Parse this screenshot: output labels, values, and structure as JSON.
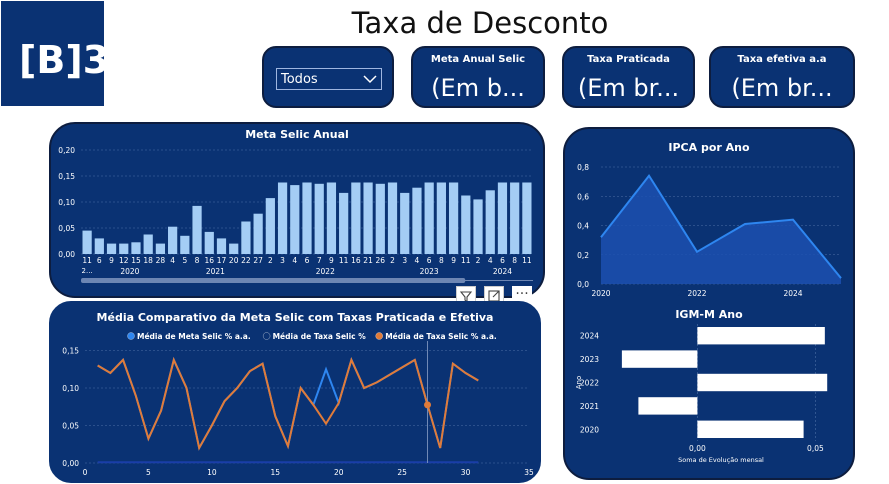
{
  "header": {
    "title": "Taxa de Desconto",
    "logo_text": "[B]3"
  },
  "filter": {
    "selected": "Todos"
  },
  "kpis": [
    {
      "title": "Meta Anual Selic",
      "value": "(Em b..."
    },
    {
      "title": "Taxa Praticada",
      "value": "(Em br..."
    },
    {
      "title": "Taxa efetiva a.a",
      "value": "(Em br..."
    }
  ],
  "toolbar": {
    "filter_icon": "filter-icon",
    "focus_icon": "focus-mode-icon",
    "more_icon": "more-options-icon",
    "more_label": "···"
  },
  "colors": {
    "panel": "#0a3273",
    "bar": "#a4cdf5",
    "line_blue": "#2e86f0",
    "line_orange": "#e07b39",
    "ipca": "#1f62d6"
  },
  "chart_data": [
    {
      "type": "bar",
      "title": "Meta Selic Anual",
      "categories": [
        "11",
        "6",
        "9",
        "12",
        "15",
        "18",
        "28",
        "4",
        "5",
        "8",
        "16",
        "17",
        "20",
        "22",
        "27",
        "2",
        "3",
        "4",
        "6",
        "7",
        "9",
        "11",
        "16",
        "21",
        "26",
        "2",
        "3",
        "4",
        "6",
        "8",
        "9",
        "11",
        "2",
        "4",
        "6",
        "8",
        "11"
      ],
      "category_sub": [
        "2..."
      ],
      "year_labels": [
        {
          "label": "2020",
          "from": 1,
          "to": 6
        },
        {
          "label": "2021",
          "from": 7,
          "to": 14
        },
        {
          "label": "2022",
          "from": 15,
          "to": 24
        },
        {
          "label": "2023",
          "from": 25,
          "to": 31
        },
        {
          "label": "2024",
          "from": 32,
          "to": 36
        }
      ],
      "values": [
        0.045,
        0.03,
        0.02,
        0.02,
        0.0225,
        0.0375,
        0.02,
        0.0525,
        0.035,
        0.0925,
        0.0425,
        0.03,
        0.02,
        0.0625,
        0.0775,
        0.1075,
        0.1375,
        0.1325,
        0.1375,
        0.135,
        0.1375,
        0.1175,
        0.1375,
        0.1375,
        0.135,
        0.1375,
        0.1175,
        0.1275,
        0.1375,
        0.1375,
        0.1375,
        0.1125,
        0.105,
        0.1225,
        0.1375,
        0.1375,
        0.1375
      ],
      "yticks": [
        "0,00",
        "0,05",
        "0,10",
        "0,15",
        "0,20"
      ],
      "ylim": [
        0,
        0.2
      ]
    },
    {
      "type": "line",
      "title": "Média Comparativo da Meta Selic com Taxas Praticada e Efetiva",
      "legend": [
        {
          "name": "Média de Meta Selic % a.a.",
          "color": "#2e86f0"
        },
        {
          "name": "Média de Taxa Selic %",
          "color": "#0a3273"
        },
        {
          "name": "Média de Taxa Selic % a.a.",
          "color": "#e07b39"
        }
      ],
      "xlim": [
        0,
        35
      ],
      "ylim": [
        0,
        0.16
      ],
      "xticks": [
        "0",
        "5",
        "10",
        "15",
        "20",
        "25",
        "30",
        "35"
      ],
      "yticks": [
        "0,00",
        "0,05",
        "0,10",
        "0,15"
      ],
      "series": [
        {
          "name": "Média de Meta Selic % a.a.",
          "x": [
            1,
            2,
            3,
            4,
            5,
            6,
            7,
            8,
            9,
            10,
            11,
            12,
            13,
            14,
            15,
            16,
            17,
            18,
            19,
            20,
            21,
            22,
            23,
            24,
            25,
            26,
            27,
            28,
            29,
            30,
            31
          ],
          "y": [
            0.13,
            0.12,
            0.1375,
            0.09,
            0.0325,
            0.07,
            0.1375,
            0.1,
            0.02,
            0.05,
            0.0825,
            0.1,
            0.1225,
            0.1325,
            0.0625,
            0.0225,
            0.1,
            0.0775,
            0.125,
            0.08,
            0.1375,
            0.1,
            0.1075,
            0.1175,
            0.1275,
            0.1375,
            0.0775,
            0.02,
            0.1325,
            0.12,
            0.11
          ]
        },
        {
          "name": "Média de Taxa Selic % a.a.",
          "x": [
            1,
            2,
            3,
            4,
            5,
            6,
            7,
            8,
            9,
            10,
            11,
            12,
            13,
            14,
            15,
            16,
            17,
            18,
            19,
            20,
            21,
            22,
            23,
            24,
            25,
            26,
            27,
            28,
            29,
            30,
            31
          ],
          "y": [
            0.13,
            0.12,
            0.1375,
            0.09,
            0.0325,
            0.07,
            0.1375,
            0.1,
            0.02,
            0.05,
            0.0825,
            0.1,
            0.1225,
            0.1325,
            0.0625,
            0.0225,
            0.1,
            0.0775,
            0.0525,
            0.08,
            0.1375,
            0.1,
            0.1075,
            0.1175,
            0.1275,
            0.1375,
            0.0775,
            0.02,
            0.1325,
            0.12,
            0.11
          ]
        }
      ]
    },
    {
      "type": "area",
      "title": "IPCA por Ano",
      "x": [
        2020,
        2021,
        2022,
        2023,
        2024,
        2025
      ],
      "values": [
        0.32,
        0.74,
        0.22,
        0.41,
        0.44,
        0.04
      ],
      "xticks": [
        "2020",
        "2022",
        "2024"
      ],
      "yticks": [
        "0,0",
        "0,2",
        "0,4",
        "0,6",
        "0,8"
      ],
      "ylim": [
        0,
        0.8
      ]
    },
    {
      "type": "bar",
      "title": "IGM-M Ano",
      "categories": [
        "2024",
        "2023",
        "2022",
        "2021",
        "2020"
      ],
      "values": [
        0.054,
        -0.032,
        0.055,
        -0.025,
        0.045
      ],
      "xticks": [
        "0,00",
        "0,05"
      ],
      "xlabel": "Soma de Evolução mensal",
      "ylabel": "Ano",
      "xlim": [
        -0.04,
        0.06
      ]
    }
  ]
}
